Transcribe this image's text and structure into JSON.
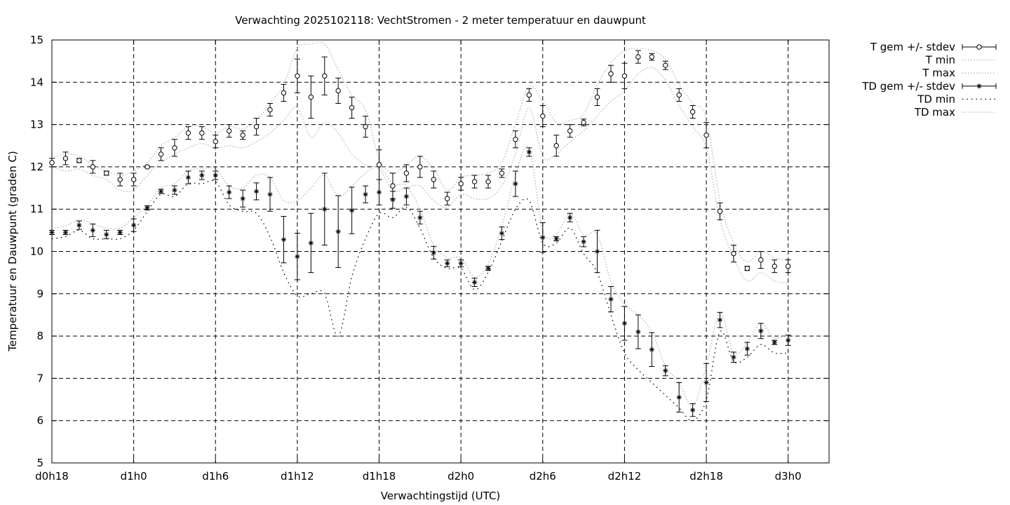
{
  "chart_data": {
    "type": "line",
    "title": "Verwachting 2025102118: VechtStromen - 2 meter temperatuur en dauwpunt",
    "xlabel": "Verwachtingstijd (UTC)",
    "ylabel": "Temperatuur en Dauwpunt (graden C)",
    "xlim": [
      18,
      75
    ],
    "ylim": [
      5,
      15
    ],
    "x_ticks": [
      {
        "x": 18,
        "label": "d0h18"
      },
      {
        "x": 24,
        "label": "d1h0"
      },
      {
        "x": 30,
        "label": "d1h6"
      },
      {
        "x": 36,
        "label": "d1h12"
      },
      {
        "x": 42,
        "label": "d1h18"
      },
      {
        "x": 48,
        "label": "d2h0"
      },
      {
        "x": 54,
        "label": "d2h6"
      },
      {
        "x": 60,
        "label": "d2h12"
      },
      {
        "x": 66,
        "label": "d2h18"
      },
      {
        "x": 72,
        "label": "d3h0"
      }
    ],
    "y_ticks": [
      5,
      6,
      7,
      8,
      9,
      10,
      11,
      12,
      13,
      14,
      15
    ],
    "grid": true,
    "legend_position": "outside-top-right",
    "x": [
      18,
      19,
      20,
      21,
      22,
      23,
      24,
      25,
      26,
      27,
      28,
      29,
      30,
      31,
      32,
      33,
      34,
      35,
      36,
      37,
      38,
      39,
      40,
      41,
      42,
      43,
      44,
      45,
      46,
      47,
      48,
      49,
      50,
      51,
      52,
      53,
      54,
      55,
      56,
      57,
      58,
      59,
      60,
      61,
      62,
      63,
      64,
      65,
      66,
      67,
      68,
      69,
      70,
      71,
      72
    ],
    "series": [
      {
        "name": "T gem +/- stdev",
        "marker": "circle",
        "values": [
          12.1,
          12.2,
          12.15,
          12.0,
          11.85,
          11.7,
          11.7,
          12.0,
          12.3,
          12.45,
          12.8,
          12.8,
          12.6,
          12.85,
          12.75,
          12.95,
          13.35,
          13.75,
          14.15,
          13.65,
          14.15,
          13.8,
          13.4,
          12.95,
          12.05,
          11.55,
          11.85,
          12.0,
          11.7,
          11.25,
          11.6,
          11.65,
          11.65,
          11.85,
          12.65,
          13.7,
          13.2,
          12.5,
          12.85,
          13.05,
          13.65,
          14.2,
          14.15,
          14.6,
          14.6,
          14.4,
          13.7,
          13.3,
          12.75,
          10.95,
          9.95,
          9.6,
          9.8,
          9.65,
          9.65
        ],
        "stdev": [
          0.1,
          0.15,
          0.05,
          0.15,
          0.05,
          0.15,
          0.15,
          0.02,
          0.15,
          0.2,
          0.15,
          0.15,
          0.15,
          0.15,
          0.1,
          0.2,
          0.15,
          0.2,
          0.4,
          0.5,
          0.45,
          0.3,
          0.25,
          0.25,
          0.35,
          0.3,
          0.2,
          0.25,
          0.2,
          0.15,
          0.15,
          0.15,
          0.15,
          0.1,
          0.2,
          0.15,
          0.25,
          0.25,
          0.15,
          0.08,
          0.2,
          0.2,
          0.3,
          0.15,
          0.08,
          0.1,
          0.15,
          0.15,
          0.3,
          0.2,
          0.2,
          0.05,
          0.2,
          0.15,
          0.15
        ]
      },
      {
        "name": "T min",
        "style": "dotted",
        "values": [
          12.0,
          11.9,
          11.95,
          11.8,
          11.7,
          11.45,
          11.45,
          11.8,
          12.1,
          12.3,
          12.45,
          12.55,
          12.45,
          12.5,
          12.45,
          12.6,
          12.8,
          13.1,
          13.4,
          12.7,
          13.05,
          12.8,
          12.3,
          12.05,
          11.95,
          11.45,
          11.5,
          11.55,
          11.2,
          11.05,
          11.35,
          11.25,
          11.25,
          11.55,
          12.3,
          13.4,
          12.25,
          12.3,
          12.6,
          12.85,
          13.2,
          13.55,
          13.8,
          14.2,
          14.35,
          14.05,
          13.45,
          12.95,
          12.45,
          10.75,
          9.85,
          9.3,
          9.5,
          9.3,
          9.25
        ]
      },
      {
        "name": "T max",
        "style": "dotted",
        "values": [
          12.2,
          12.3,
          12.25,
          12.05,
          11.9,
          11.8,
          11.9,
          12.1,
          12.5,
          12.7,
          12.95,
          12.95,
          12.8,
          12.95,
          12.9,
          13.1,
          13.5,
          13.95,
          14.8,
          14.9,
          14.9,
          14.3,
          13.7,
          13.35,
          12.2,
          11.85,
          12.05,
          12.25,
          11.95,
          11.45,
          11.75,
          11.8,
          11.85,
          12.1,
          13.0,
          13.9,
          13.55,
          13.05,
          13.1,
          13.25,
          13.95,
          14.45,
          14.75,
          14.8,
          14.75,
          14.55,
          13.95,
          13.5,
          13.15,
          11.2,
          10.2,
          9.75,
          10.0,
          9.85,
          9.8
        ]
      },
      {
        "name": "TD gem +/- stdev",
        "marker": "asterisk",
        "values": [
          10.45,
          10.45,
          10.62,
          10.5,
          10.4,
          10.45,
          10.62,
          11.03,
          11.42,
          11.45,
          11.75,
          11.8,
          11.8,
          11.4,
          11.25,
          11.42,
          11.35,
          10.28,
          9.88,
          10.2,
          11.0,
          10.47,
          10.97,
          11.35,
          11.4,
          11.22,
          11.3,
          10.8,
          9.97,
          9.72,
          9.72,
          9.27,
          9.6,
          10.43,
          11.6,
          12.35,
          10.33,
          10.3,
          10.8,
          10.23,
          10.0,
          8.87,
          8.3,
          8.1,
          7.68,
          7.18,
          6.55,
          6.25,
          6.9,
          8.38,
          7.5,
          7.7,
          8.12,
          7.85,
          7.9
        ],
        "stdev": [
          0.05,
          0.05,
          0.1,
          0.15,
          0.1,
          0.05,
          0.15,
          0.05,
          0.05,
          0.1,
          0.15,
          0.1,
          0.1,
          0.15,
          0.2,
          0.2,
          0.4,
          0.55,
          0.55,
          0.7,
          0.85,
          0.85,
          0.55,
          0.2,
          0.3,
          0.2,
          0.2,
          0.15,
          0.15,
          0.08,
          0.08,
          0.1,
          0.05,
          0.15,
          0.3,
          0.1,
          0.35,
          0.05,
          0.1,
          0.12,
          0.5,
          0.3,
          0.4,
          0.4,
          0.4,
          0.12,
          0.35,
          0.15,
          0.45,
          0.18,
          0.12,
          0.15,
          0.18,
          0.05,
          0.12
        ]
      },
      {
        "name": "TD min",
        "style": "dotted",
        "values": [
          10.3,
          10.35,
          10.5,
          10.3,
          10.3,
          10.3,
          10.5,
          10.95,
          11.35,
          11.3,
          11.6,
          11.6,
          11.65,
          11.1,
          10.95,
          10.9,
          10.35,
          9.5,
          8.95,
          9.0,
          9.0,
          8.0,
          9.4,
          10.3,
          10.9,
          10.8,
          11.05,
          10.55,
          9.85,
          9.6,
          9.6,
          9.1,
          9.5,
          10.25,
          11.0,
          11.2,
          10.2,
          10.2,
          10.55,
          9.95,
          9.5,
          8.5,
          7.6,
          7.2,
          6.9,
          6.6,
          6.3,
          6.0,
          6.5,
          8.1,
          7.4,
          7.5,
          7.8,
          7.6,
          7.6
        ]
      },
      {
        "name": "TD max",
        "style": "dotted",
        "values": [
          10.55,
          10.6,
          10.75,
          10.65,
          10.55,
          10.55,
          10.8,
          11.1,
          11.5,
          11.6,
          11.9,
          11.95,
          11.95,
          11.55,
          11.5,
          11.8,
          11.75,
          11.2,
          11.2,
          11.5,
          11.8,
          11.3,
          11.55,
          11.85,
          12.0,
          11.6,
          11.55,
          11.0,
          10.15,
          9.85,
          9.85,
          9.4,
          9.7,
          10.6,
          11.8,
          12.45,
          10.5,
          10.4,
          10.9,
          10.4,
          10.4,
          9.3,
          8.75,
          8.5,
          8.1,
          7.3,
          6.9,
          6.35,
          7.3,
          8.55,
          7.6,
          7.85,
          8.3,
          7.95,
          8.05
        ]
      }
    ]
  }
}
